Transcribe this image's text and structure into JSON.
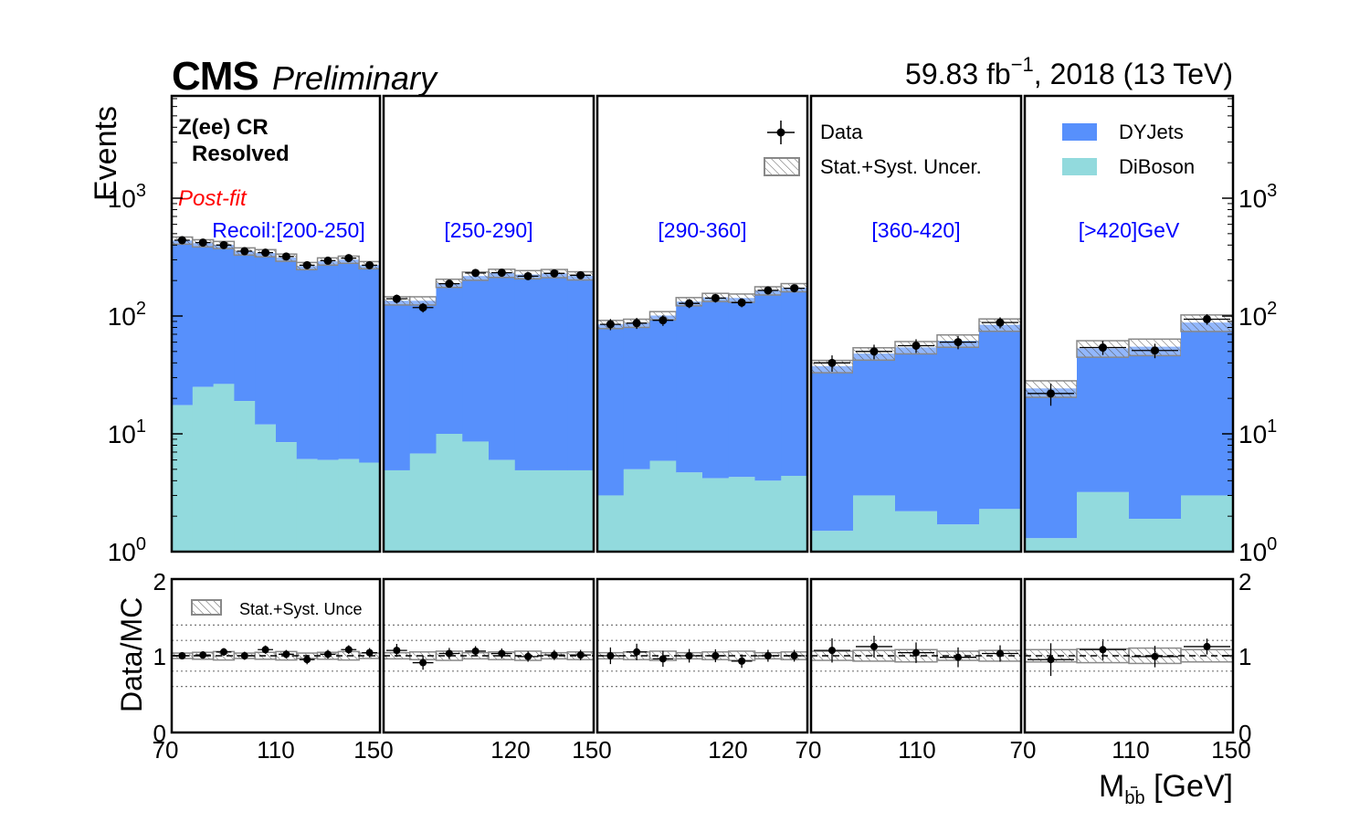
{
  "header": {
    "cms": "CMS",
    "preliminary": "Preliminary",
    "lumi_main": "59.83 fb",
    "lumi_exp": "−1",
    "lumi_tail": ", 2018 (13 TeV)"
  },
  "annotations": {
    "region_line1": "Z(ee) CR",
    "region_line2": "Resolved",
    "postfit": "Post-fit",
    "bins": [
      "Recoil:[200-250]",
      "[250-290]",
      "[290-360]",
      "[360-420]",
      "[>420]GeV"
    ]
  },
  "legend": {
    "data": "Data",
    "uncertainty": "Stat.+Syst. Uncer.",
    "dyjets": "DYJets",
    "diboson": "DiBoson",
    "ratio_uncertainty": "Stat.+Syst. Unce"
  },
  "axes": {
    "ylabel_main": "Events",
    "ylabel_ratio": "Data/MC",
    "xlabel_main": "M",
    "xlabel_sub": "bb",
    "xlabel_unit": " [GeV]",
    "main_ticks": [
      {
        "base": "10",
        "exp": "0",
        "value": 1
      },
      {
        "base": "10",
        "exp": "1",
        "value": 10
      },
      {
        "base": "10",
        "exp": "2",
        "value": 100
      },
      {
        "base": "10",
        "exp": "3",
        "value": 1000
      }
    ],
    "ratio_ticks": [
      "0",
      "1",
      "2"
    ],
    "x_ticks": [
      [
        "70",
        "110",
        "150"
      ],
      [
        "120",
        "150"
      ],
      [
        "120",
        "70"
      ],
      [
        "110",
        "70"
      ],
      [
        "110",
        "150"
      ]
    ]
  },
  "colors": {
    "dyjets": "#5790fc",
    "diboson": "#92dadd",
    "text_blue": "#0000ff",
    "text_red": "#ff0000",
    "uncertainty": "#888888"
  },
  "chart_data": {
    "type": "bar",
    "stacked": true,
    "yscale": "log",
    "ylim": [
      1,
      7000
    ],
    "ratio_ylim": [
      0,
      2
    ],
    "panels": [
      {
        "label": "Recoil:[200-250]",
        "data": [
          440,
          420,
          400,
          355,
          345,
          320,
          270,
          295,
          310,
          270
        ],
        "dyjets": [
          420,
          390,
          375,
          335,
          330,
          305,
          260,
          285,
          295,
          265
        ],
        "diboson": [
          17.5,
          25,
          26.5,
          19,
          12,
          8.5,
          6.1,
          6,
          6.1,
          5.7
        ],
        "ratio": [
          1.0,
          1.01,
          1.05,
          1.0,
          1.08,
          1.02,
          0.95,
          1.02,
          1.08,
          1.04
        ]
      },
      {
        "label": "[250-290]",
        "data": [
          140,
          118,
          188,
          232,
          233,
          218,
          230,
          222
        ],
        "dyjets": [
          130,
          128,
          180,
          210,
          225,
          220,
          225,
          215
        ],
        "diboson": [
          4.9,
          6.8,
          10,
          8.6,
          6,
          4.9,
          4.9,
          4.9
        ],
        "ratio": [
          1.07,
          0.91,
          1.03,
          1.06,
          1.03,
          0.99,
          1.01,
          1.01
        ]
      },
      {
        "label": "[290-360]",
        "data": [
          85,
          87,
          92,
          128,
          142,
          130,
          165,
          172
        ],
        "dyjets": [
          82,
          82,
          95,
          128,
          140,
          138,
          160,
          170
        ],
        "diboson": [
          3,
          5,
          5.9,
          4.7,
          4.2,
          4.3,
          4,
          4.4
        ],
        "ratio": [
          1.0,
          1.05,
          0.96,
          1.0,
          1.0,
          0.93,
          1.0,
          1.0
        ]
      },
      {
        "label": "[360-420]",
        "data": [
          40,
          50,
          56,
          60,
          88
        ],
        "dyjets": [
          36,
          45,
          52,
          60,
          82
        ],
        "diboson": [
          1.5,
          3,
          2.2,
          1.7,
          2.3
        ],
        "ratio": [
          1.07,
          1.12,
          1.04,
          0.98,
          1.03
        ]
      },
      {
        "label": "[>420]GeV",
        "data": [
          22,
          54,
          51,
          94
        ],
        "dyjets": [
          23,
          50,
          53,
          85
        ],
        "diboson": [
          1.3,
          3.2,
          1.9,
          3
        ],
        "ratio": [
          0.95,
          1.08,
          0.99,
          1.12
        ]
      }
    ]
  }
}
